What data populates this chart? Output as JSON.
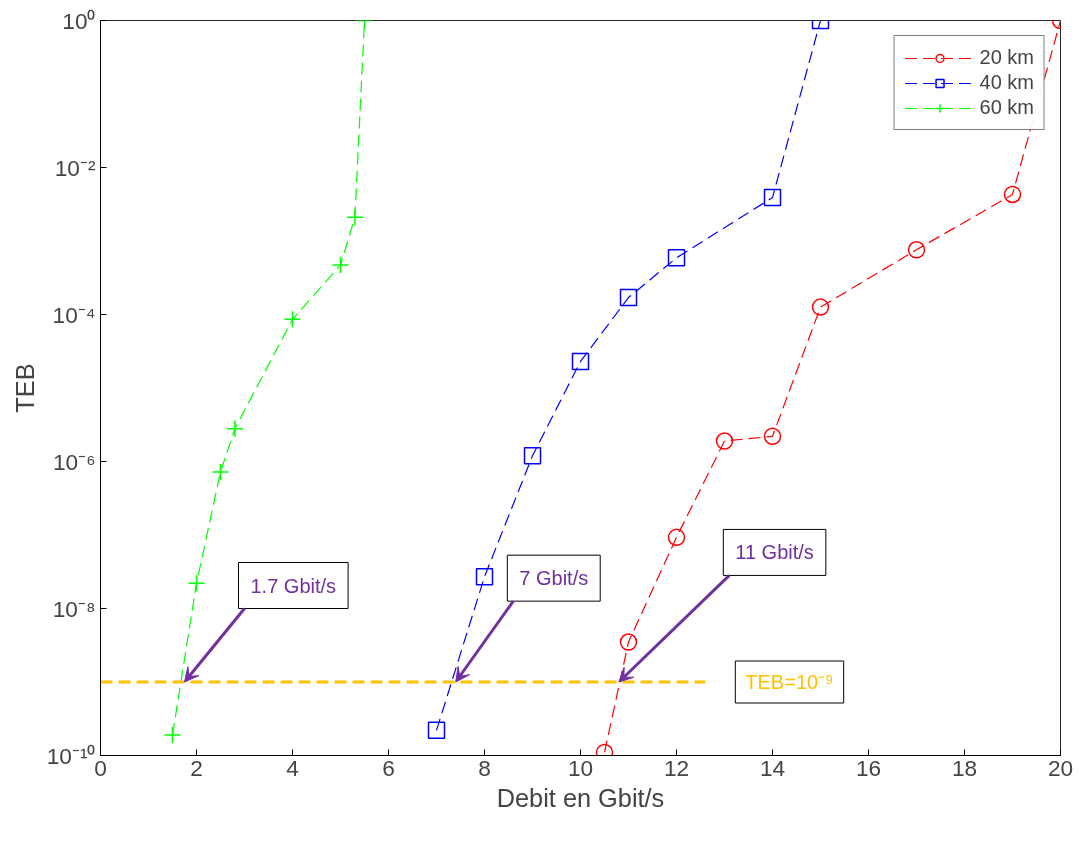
{
  "chart_data": {
    "type": "line",
    "xlabel": "Debit en Gbit/s",
    "ylabel": "TEB",
    "log": "y",
    "grid": false,
    "legend": "top right",
    "line_style": "dashed",
    "xlim": [
      0,
      20
    ],
    "xticks": [
      0,
      2,
      4,
      6,
      8,
      10,
      12,
      14,
      16,
      18,
      20
    ],
    "ylim": [
      1e-10,
      1
    ],
    "yticks": [
      {
        "value": 1e-10,
        "label": "10⁻¹⁰"
      },
      {
        "value": 1e-08,
        "label": "10⁻⁸"
      },
      {
        "value": 1e-06,
        "label": "10⁻⁶"
      },
      {
        "value": 0.0001,
        "label": "10⁻⁴"
      },
      {
        "value": 0.01,
        "label": "10⁻²"
      },
      {
        "value": 1,
        "label": "10⁰"
      }
    ],
    "series": [
      {
        "name": "20 km",
        "color": "#ff0000",
        "marker": "circle",
        "x": [
          10.5,
          11,
          12,
          13,
          14,
          15,
          17,
          19,
          20
        ],
        "values": [
          1.1e-10,
          3.5e-09,
          9.3e-08,
          1.9e-06,
          2.2e-06,
          0.000126,
          0.00076,
          0.0043,
          1
        ]
      },
      {
        "name": "40 km",
        "color": "#0000ff",
        "marker": "square",
        "x": [
          7,
          8,
          9,
          10,
          11,
          12,
          14,
          15
        ],
        "values": [
          2.2e-10,
          2.7e-08,
          1.2e-06,
          2.3e-05,
          0.00017,
          0.00059,
          0.0039,
          1
        ]
      },
      {
        "name": "60 km",
        "color": "#00ff00",
        "marker": "cross",
        "x": [
          1.5,
          2,
          2.5,
          2.8,
          4,
          5,
          5.3,
          5.5
        ],
        "values": [
          1.9e-10,
          2.2e-08,
          7.2e-07,
          2.8e-06,
          8.6e-05,
          0.00047,
          0.0021,
          1
        ]
      },
      {
        "type": "line",
        "color": "#ffc000",
        "marker": "none",
        "x": [
          0,
          12.6
        ],
        "values": [
          1e-09,
          1e-09
        ]
      }
    ],
    "annotations": [
      {
        "text": "1.7 Gbit/s",
        "x": 1.75,
        "y": 1e-09
      },
      {
        "text": "7 Gbit/s",
        "x": 7.4,
        "y": 1e-09
      },
      {
        "text": "11 Gbit/s",
        "x": 10.8,
        "y": 1e-09
      },
      "TEB=10⁻⁹"
    ]
  }
}
